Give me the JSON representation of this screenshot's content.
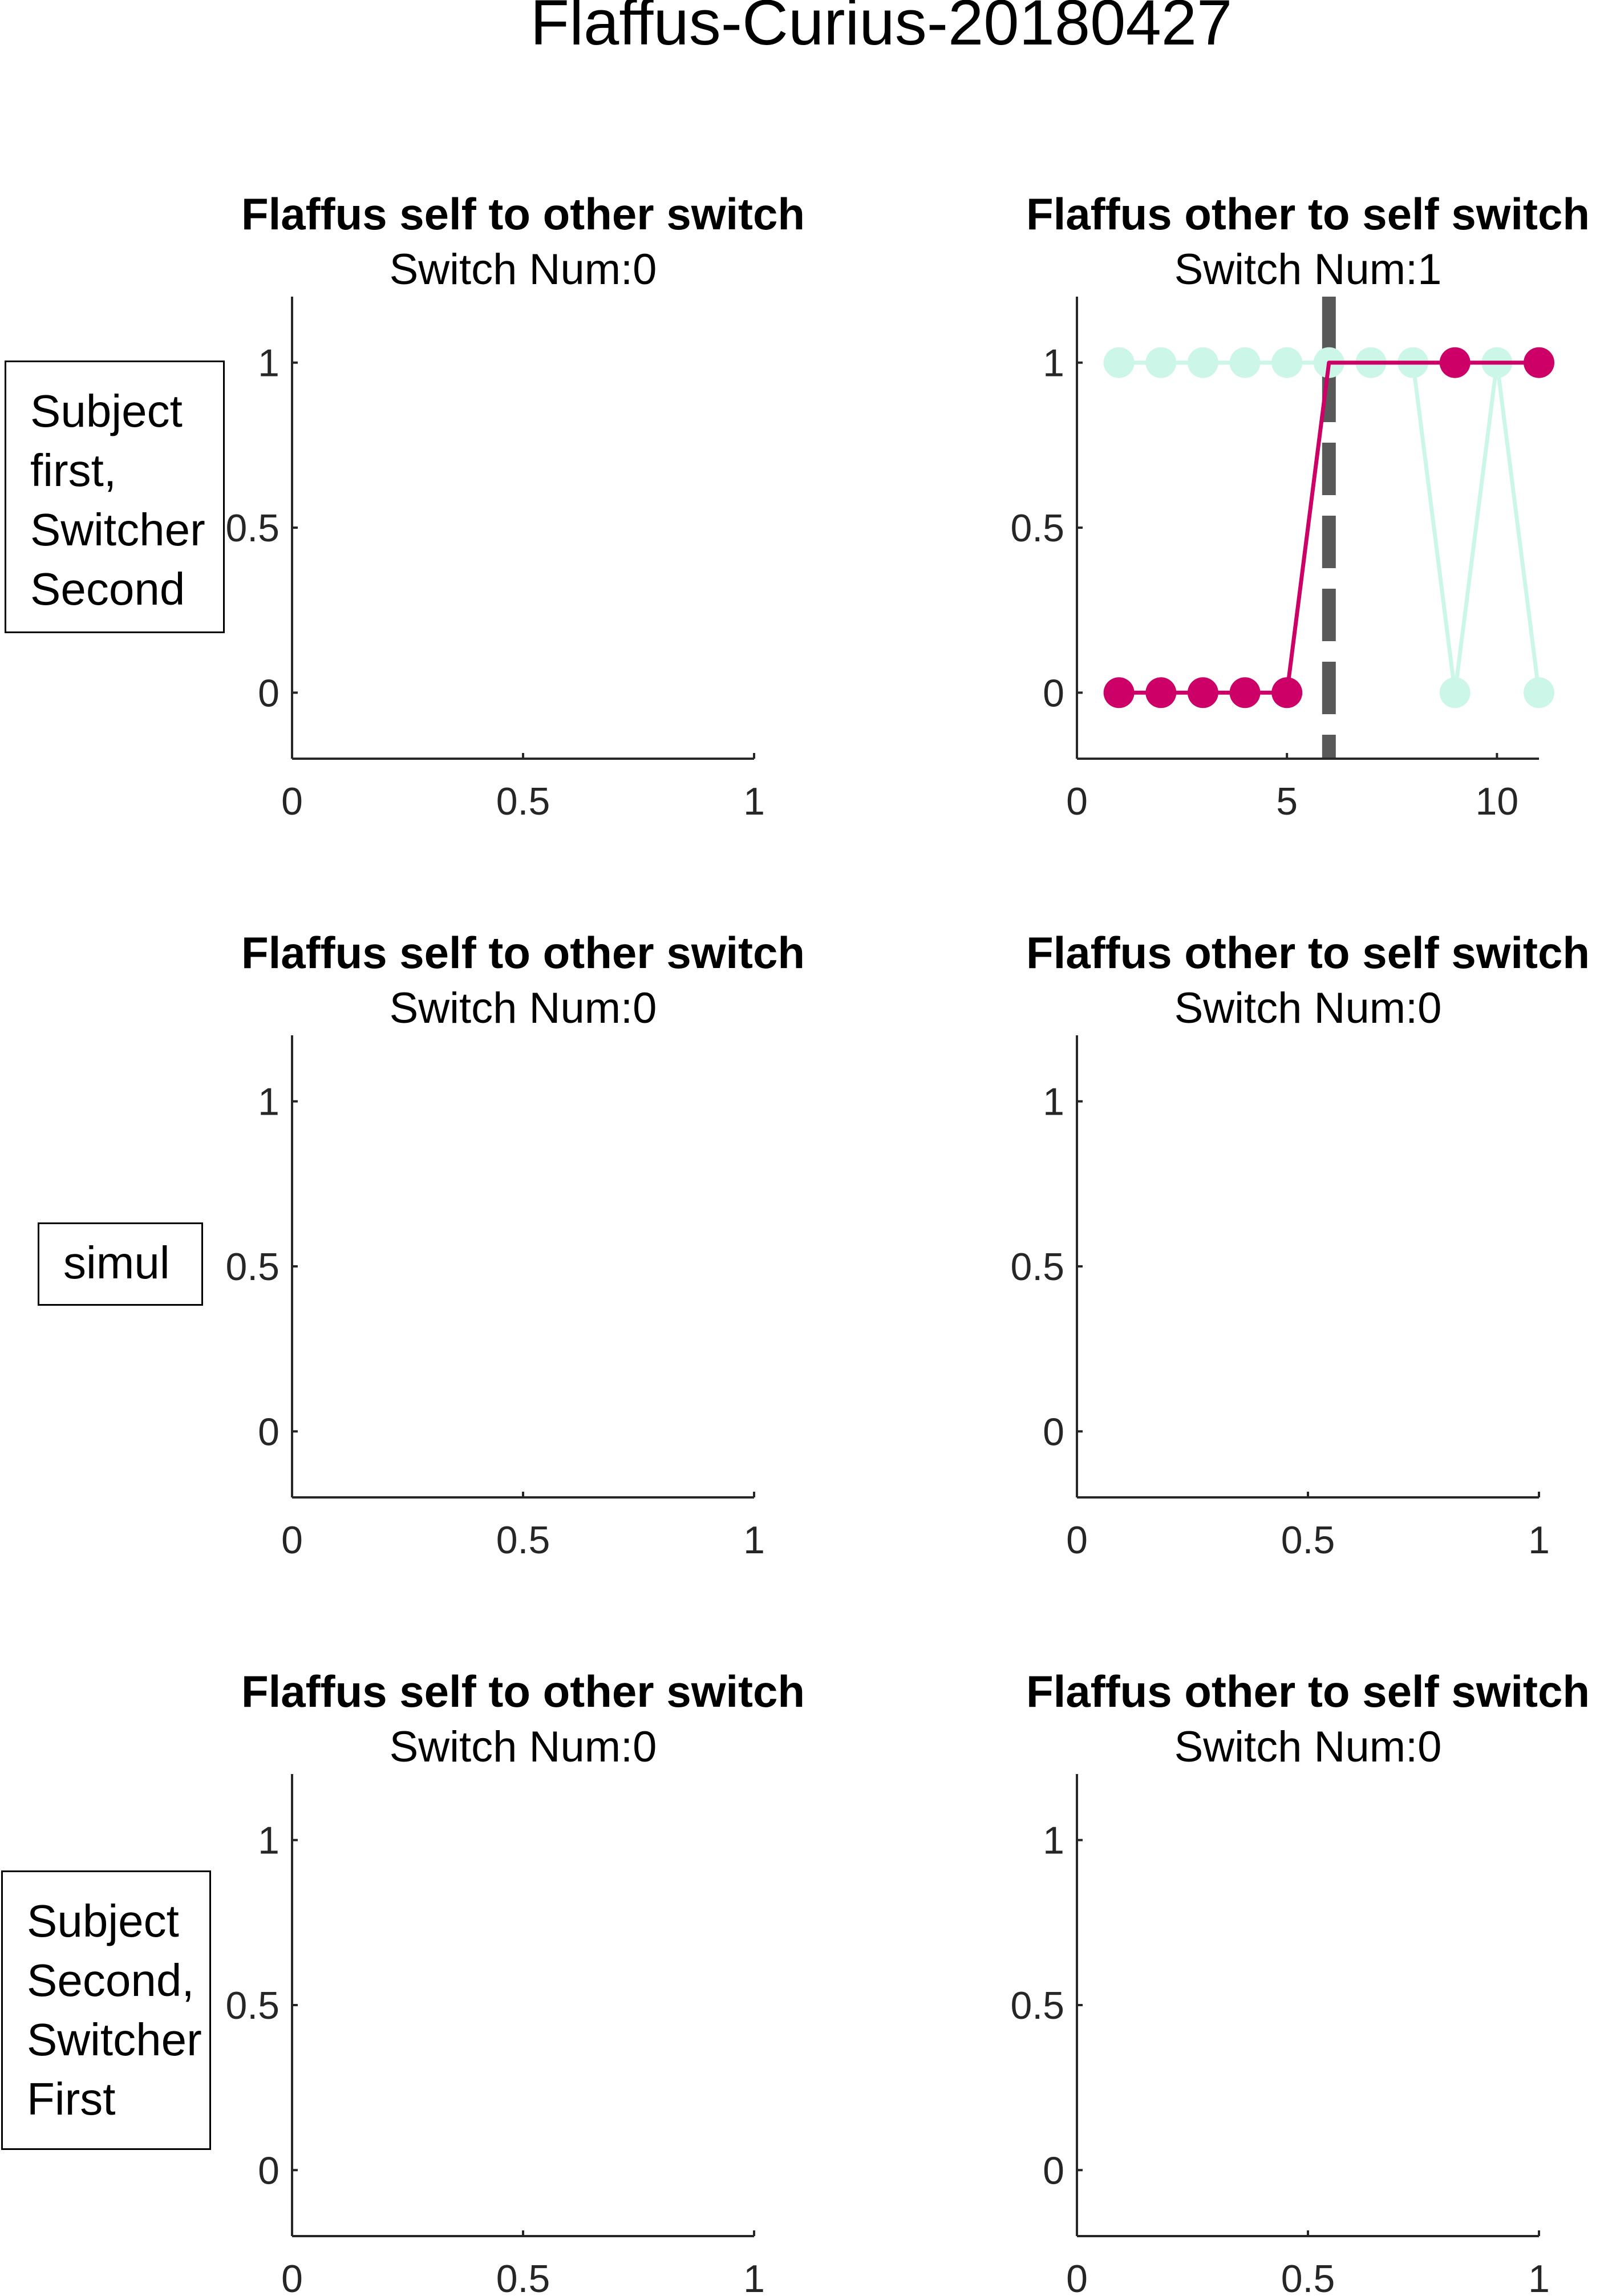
{
  "figure_title": "Flaffus-Curius-20180427",
  "row_labels": [
    [
      "Subject",
      "first,",
      "Switcher",
      "Second"
    ],
    [
      "simul"
    ],
    [
      "Subject",
      "Second,",
      "Switcher",
      "First"
    ]
  ],
  "colors": {
    "subject_series": "#cc0066",
    "other_series": "#ccf7e8",
    "switch_marker": "#595959",
    "axes": "#262626"
  },
  "chart_data": [
    {
      "type": "line",
      "title": "Flaffus self to other switch",
      "subtitle": "Switch Num:0",
      "xlim": [
        0,
        1
      ],
      "ylim": [
        -0.2,
        1.2
      ],
      "xticks": [
        0,
        0.5,
        1
      ],
      "yticks": [
        0,
        0.5,
        1
      ],
      "xticklabels": [
        "0",
        "0.5",
        "1"
      ],
      "yticklabels": [
        "0",
        "0.5",
        "1"
      ],
      "series": []
    },
    {
      "type": "line",
      "title": "Flaffus other to self switch",
      "subtitle": "Switch Num:1",
      "xlim": [
        0,
        11
      ],
      "ylim": [
        -0.2,
        1.2
      ],
      "xticks": [
        0,
        5,
        10
      ],
      "yticks": [
        0,
        0.5,
        1
      ],
      "xticklabels": [
        "0",
        "5",
        "10"
      ],
      "yticklabels": [
        "0",
        "0.5",
        "1"
      ],
      "switch_x": 6,
      "series": [
        {
          "color": "#ccf7e8",
          "x": [
            1,
            2,
            3,
            4,
            5,
            6,
            7,
            8,
            9,
            10,
            11
          ],
          "y": [
            1,
            1,
            1,
            1,
            1,
            1,
            1,
            1,
            0,
            1,
            0
          ]
        },
        {
          "color": "#cc0066",
          "x": [
            1,
            2,
            3,
            4,
            5,
            6,
            7,
            8,
            9,
            10,
            11
          ],
          "y": [
            0,
            0,
            0,
            0,
            0,
            1,
            1,
            1,
            1,
            1,
            1
          ],
          "markers_at": [
            1,
            2,
            3,
            4,
            5,
            9,
            11
          ]
        }
      ]
    },
    {
      "type": "line",
      "title": "Flaffus self to other switch",
      "subtitle": "Switch Num:0",
      "xlim": [
        0,
        1
      ],
      "ylim": [
        -0.2,
        1.2
      ],
      "xticks": [
        0,
        0.5,
        1
      ],
      "yticks": [
        0,
        0.5,
        1
      ],
      "xticklabels": [
        "0",
        "0.5",
        "1"
      ],
      "yticklabels": [
        "0",
        "0.5",
        "1"
      ],
      "series": []
    },
    {
      "type": "line",
      "title": "Flaffus other to self switch",
      "subtitle": "Switch Num:0",
      "xlim": [
        0,
        1
      ],
      "ylim": [
        -0.2,
        1.2
      ],
      "xticks": [
        0,
        0.5,
        1
      ],
      "yticks": [
        0,
        0.5,
        1
      ],
      "xticklabels": [
        "0",
        "0.5",
        "1"
      ],
      "yticklabels": [
        "0",
        "0.5",
        "1"
      ],
      "series": []
    },
    {
      "type": "line",
      "title": "Flaffus self to other switch",
      "subtitle": "Switch Num:0",
      "xlim": [
        0,
        1
      ],
      "ylim": [
        -0.2,
        1.2
      ],
      "xticks": [
        0,
        0.5,
        1
      ],
      "yticks": [
        0,
        0.5,
        1
      ],
      "xticklabels": [
        "0",
        "0.5",
        "1"
      ],
      "yticklabels": [
        "0",
        "0.5",
        "1"
      ],
      "series": []
    },
    {
      "type": "line",
      "title": "Flaffus other to self switch",
      "subtitle": "Switch Num:0",
      "xlim": [
        0,
        1
      ],
      "ylim": [
        -0.2,
        1.2
      ],
      "xticks": [
        0,
        0.5,
        1
      ],
      "yticks": [
        0,
        0.5,
        1
      ],
      "xticklabels": [
        "0",
        "0.5",
        "1"
      ],
      "yticklabels": [
        "0",
        "0.5",
        "1"
      ],
      "series": []
    }
  ]
}
